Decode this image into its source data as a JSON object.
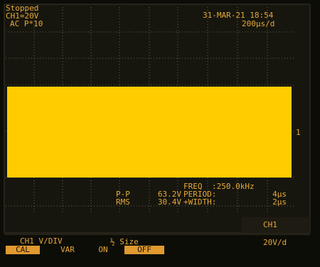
{
  "status": {
    "state": "Stopped",
    "channel": "CH1=20V",
    "coupling": "AC  P*10",
    "datetime": "31-MAR-21 18:54",
    "timebase": "200µs/d"
  },
  "trace_marker": "1",
  "measurements": {
    "left": [
      {
        "label": "P-P",
        "value": "63.2V"
      },
      {
        "label": "RMS",
        "value": "30.4V"
      }
    ],
    "right": [
      {
        "label": "FREQ",
        "value": ":250.0kHz"
      },
      {
        "label": "PERIOD:",
        "value": "4µs"
      },
      {
        "label": "+WIDTH:",
        "value": "2µs"
      }
    ]
  },
  "menu": {
    "vdiv": {
      "title": "CH1 V/DIV",
      "options": [
        "CAL",
        "VAR"
      ]
    },
    "size": {
      "title": "½ Size",
      "options": [
        "ON",
        "OFF"
      ]
    },
    "channel": {
      "title": "CH1",
      "value": "20V/d"
    }
  }
}
